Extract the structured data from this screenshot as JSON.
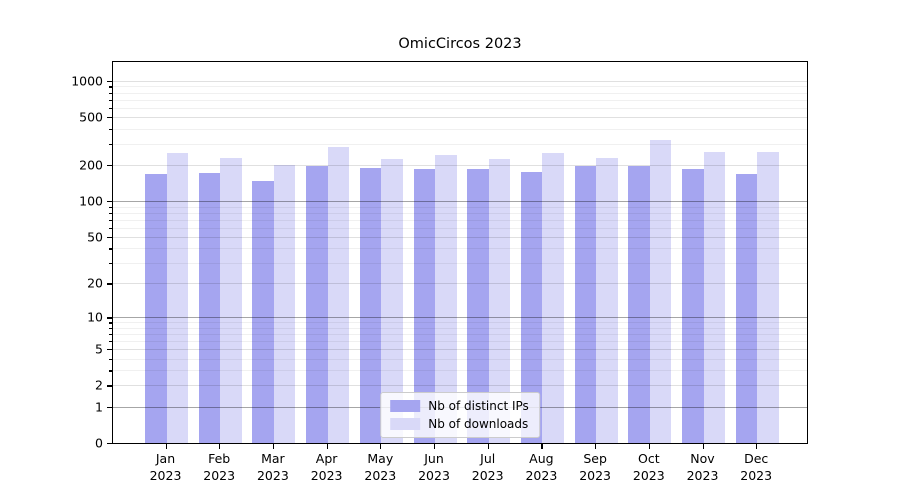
{
  "chart_data": {
    "type": "bar",
    "title": "OmicCircos 2023",
    "categories": [
      "Jan",
      "Feb",
      "Mar",
      "Apr",
      "May",
      "Jun",
      "Jul",
      "Aug",
      "Sep",
      "Oct",
      "Nov",
      "Dec"
    ],
    "year_label": "2023",
    "series": [
      {
        "name": "Nb of distinct IPs",
        "color": "#a5a5f0",
        "values": [
          170,
          172,
          148,
          196,
          188,
          185,
          185,
          174,
          195,
          195,
          185,
          168
        ]
      },
      {
        "name": "Nb of downloads",
        "color": "#d9d9f8",
        "values": [
          253,
          228,
          202,
          281,
          227,
          244,
          226,
          252,
          230,
          322,
          256,
          257
        ]
      }
    ],
    "xlabel": "",
    "ylabel": "",
    "yscale": "log1p",
    "ylim": [
      0,
      1465
    ],
    "yticks": [
      0,
      1,
      2,
      5,
      10,
      20,
      50,
      100,
      200,
      500,
      1000
    ],
    "minor_yticks": [
      3,
      4,
      6,
      7,
      8,
      9,
      30,
      40,
      60,
      70,
      80,
      90,
      300,
      400,
      600,
      700,
      800,
      900
    ],
    "emphasized_gridlines": [
      1,
      10,
      100
    ],
    "grid": "on",
    "legend_position": "lower center"
  },
  "colors": {
    "grid_major": "rgba(0,0,0,0.12)",
    "grid_minor": "rgba(0,0,0,0.06)",
    "grid_emphasis": "rgba(0,0,0,0.35)",
    "spine": "#000000",
    "background": "#ffffff"
  }
}
